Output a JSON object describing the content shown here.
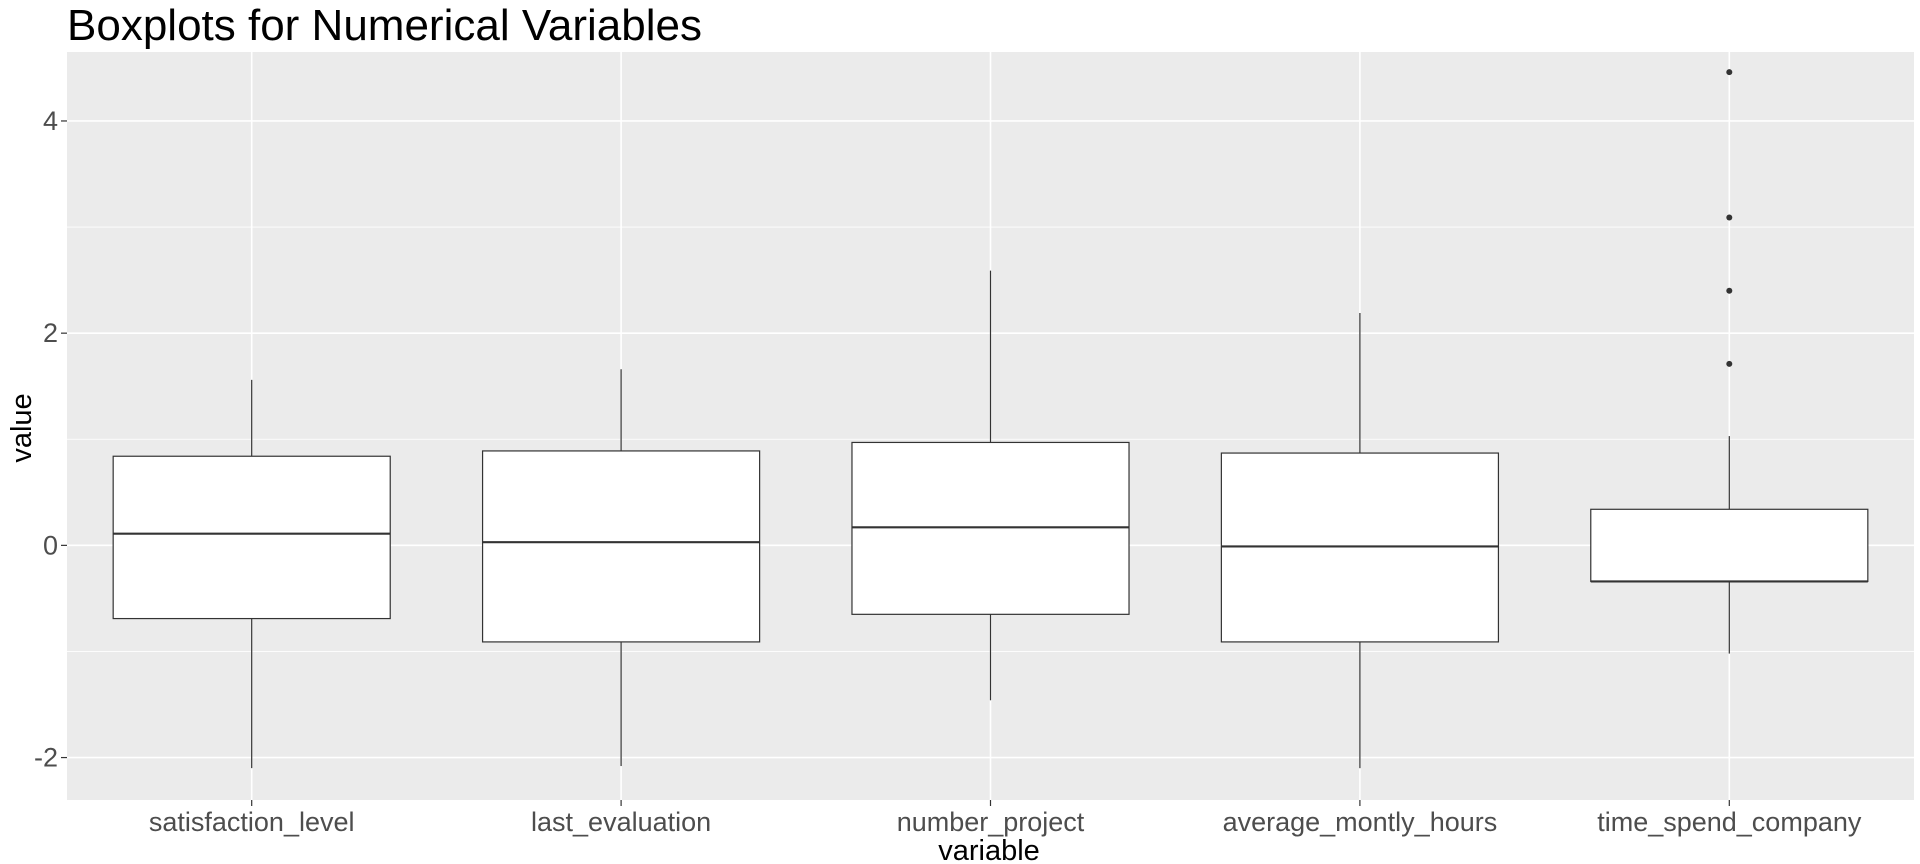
{
  "chart_data": {
    "type": "boxplot",
    "title": "Boxplots for Numerical Variables",
    "xlabel": "variable",
    "ylabel": "value",
    "ylim": [
      -2.4,
      4.65
    ],
    "y_ticks": [
      -2,
      0,
      2,
      4
    ],
    "y_tick_labels": [
      "-2",
      "0",
      "2",
      "4"
    ],
    "grid": true,
    "colors": {
      "panel_background": "#ebebeb",
      "grid_line": "#ffffff",
      "box_fill": "#ffffff",
      "box_stroke": "#333333",
      "tick_text": "#4d4d4d"
    },
    "categories": [
      "satisfaction_level",
      "last_evaluation",
      "number_project",
      "average_montly_hours",
      "time_spend_company"
    ],
    "boxes": [
      {
        "category": "satisfaction_level",
        "lower_whisker": -2.1,
        "q1": -0.69,
        "median": 0.11,
        "q3": 0.84,
        "upper_whisker": 1.56,
        "outliers": []
      },
      {
        "category": "last_evaluation",
        "lower_whisker": -2.08,
        "q1": -0.91,
        "median": 0.03,
        "q3": 0.89,
        "upper_whisker": 1.66,
        "outliers": []
      },
      {
        "category": "number_project",
        "lower_whisker": -1.46,
        "q1": -0.65,
        "median": 0.17,
        "q3": 0.97,
        "upper_whisker": 2.59,
        "outliers": []
      },
      {
        "category": "average_montly_hours",
        "lower_whisker": -2.1,
        "q1": -0.91,
        "median": -0.01,
        "q3": 0.87,
        "upper_whisker": 2.19,
        "outliers": []
      },
      {
        "category": "time_spend_company",
        "lower_whisker": -1.02,
        "q1": -0.34,
        "median": -0.34,
        "q3": 0.34,
        "upper_whisker": 1.03,
        "outliers": [
          1.71,
          2.4,
          3.09,
          4.46
        ]
      }
    ]
  }
}
